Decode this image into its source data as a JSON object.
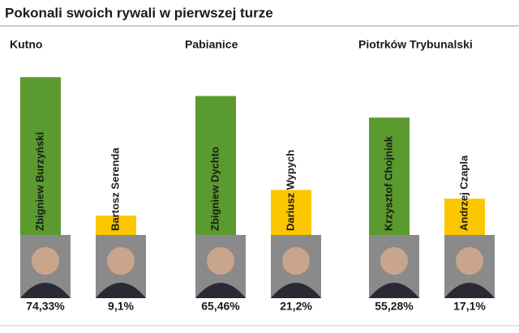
{
  "title": "Pokonali swoich rywali w pierwszej turze",
  "chart_data": [
    {
      "type": "bar",
      "title": "Kutno",
      "categories": [
        "Zbigniew Burzyński",
        "Bartosz Serenda"
      ],
      "values": [
        74.33,
        9.1
      ],
      "value_labels": [
        "74,33%",
        "9,1%"
      ],
      "colors": [
        "#5a9a2e",
        "#fcc600"
      ]
    },
    {
      "type": "bar",
      "title": "Pabianice",
      "categories": [
        "Zbigniew Dychto",
        "Dariusz Wypych"
      ],
      "values": [
        65.46,
        21.2
      ],
      "value_labels": [
        "65,46%",
        "21,2%"
      ],
      "colors": [
        "#5a9a2e",
        "#fcc600"
      ]
    },
    {
      "type": "bar",
      "title": "Piotrków Trybunalski",
      "categories": [
        "Krzysztof Chojniak",
        "Andrzej Czapla"
      ],
      "values": [
        55.28,
        17.1
      ],
      "value_labels": [
        "55,28%",
        "17,1%"
      ],
      "colors": [
        "#5a9a2e",
        "#fcc600"
      ]
    }
  ]
}
